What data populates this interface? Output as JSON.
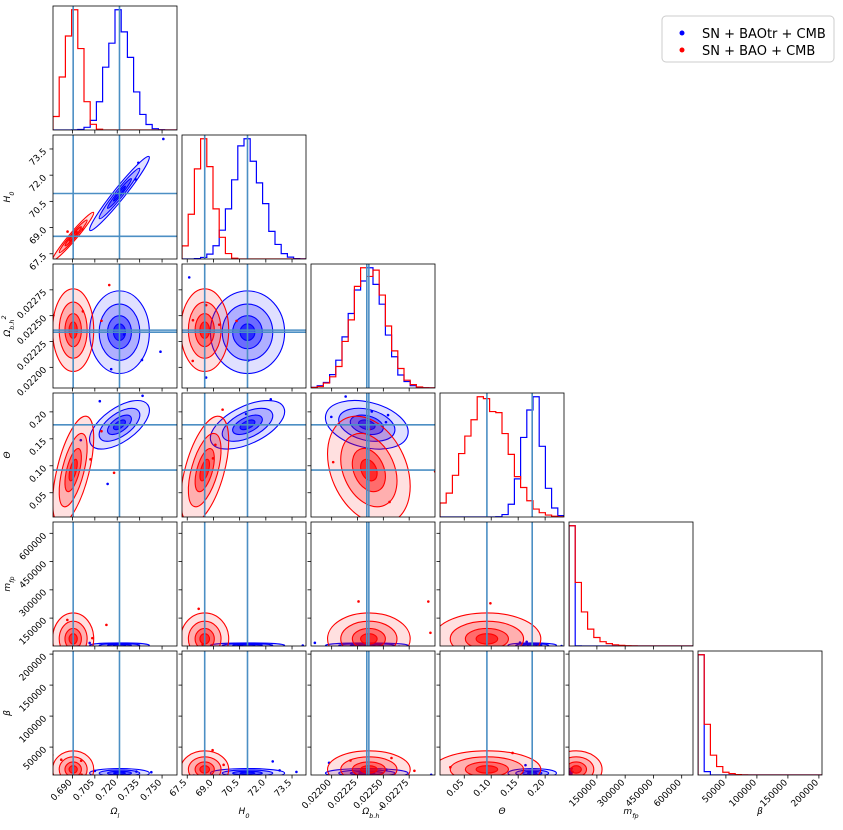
{
  "chart_data": {
    "type": "corner",
    "parameters": [
      {
        "key": "omega_l",
        "label": "Ω_l",
        "ticks": [
          "0.690",
          "0.705",
          "0.720",
          "0.735",
          "0.750"
        ],
        "tickvals": [
          0.69,
          0.705,
          0.72,
          0.735,
          0.75
        ],
        "range": [
          0.677,
          0.76
        ],
        "truth": [
          0.6905,
          0.7215
        ]
      },
      {
        "key": "H0",
        "label": "H_0",
        "ticks": [
          "67.5",
          "69.0",
          "70.5",
          "72.0",
          "73.5"
        ],
        "tickvals": [
          67.5,
          69.0,
          70.5,
          72.0,
          73.5
        ],
        "range": [
          67.2,
          74.3
        ],
        "truth": [
          68.5,
          70.95
        ]
      },
      {
        "key": "omega_b_h2",
        "label": "Ω_b.h^2",
        "ticks": [
          "0.02200",
          "0.02225",
          "0.02250",
          "0.02275"
        ],
        "tickvals": [
          0.022,
          0.02225,
          0.0225,
          0.02275
        ],
        "range": [
          0.0218,
          0.023
        ],
        "truth": [
          0.02234,
          0.02236
        ]
      },
      {
        "key": "theta",
        "label": "Θ",
        "ticks": [
          "0.05",
          "0.10",
          "0.15",
          "0.20"
        ],
        "tickvals": [
          0.05,
          0.1,
          0.15,
          0.2
        ],
        "range": [
          0.005,
          0.235
        ],
        "truth": [
          0.092,
          0.176
        ]
      },
      {
        "key": "m_fp",
        "label": "m_fp",
        "ticks": [
          "150000",
          "300000",
          "450000",
          "600000"
        ],
        "tickvals": [
          150000,
          300000,
          450000,
          600000
        ],
        "range": [
          2000,
          660000
        ],
        "truth": []
      },
      {
        "key": "beta",
        "label": "β",
        "ticks": [
          "50000",
          "100000",
          "150000",
          "200000"
        ],
        "tickvals": [
          50000,
          100000,
          150000,
          200000
        ],
        "range": [
          5000,
          205000
        ],
        "truth": []
      }
    ],
    "series": [
      {
        "name": "SN + BAOtr + CMB",
        "color": "#0000ff",
        "mean": {
          "omega_l": 0.7215,
          "H0": 70.95,
          "omega_b_h2": 0.02234,
          "theta": 0.176,
          "m_fp": 6000,
          "beta": 8000
        },
        "sd": {
          "omega_l": 0.008,
          "H0": 0.85,
          "omega_b_h2": 0.00016,
          "theta": 0.018,
          "m_fp": 5000,
          "beta": 3000
        }
      },
      {
        "name": "SN + BAO + CMB",
        "color": "#ff0000",
        "mean": {
          "omega_l": 0.6905,
          "H0": 68.5,
          "omega_b_h2": 0.02236,
          "theta": 0.092,
          "m_fp": 40000,
          "beta": 14000
        },
        "sd": {
          "omega_l": 0.0055,
          "H0": 0.55,
          "omega_b_h2": 0.00016,
          "theta": 0.04,
          "m_fp": 55000,
          "beta": 12000
        }
      }
    ],
    "legend_position": "top-right",
    "truth_line_color": "#4c8fc4"
  }
}
